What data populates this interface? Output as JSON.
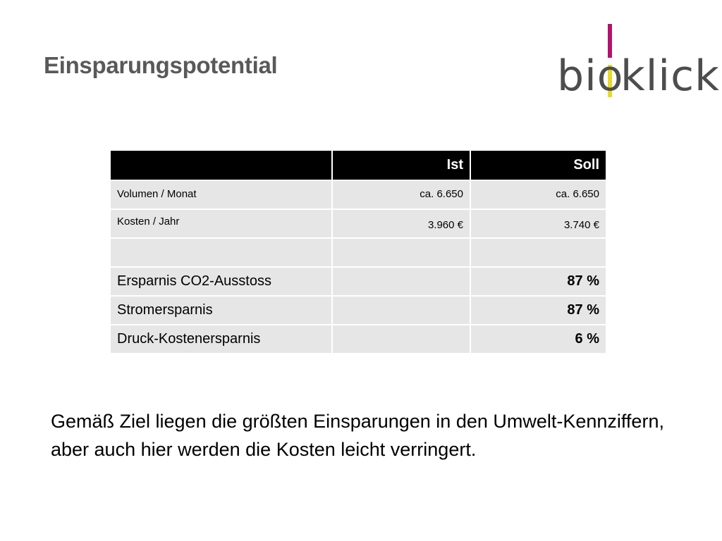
{
  "title": "Einsparungspotential",
  "logo": {
    "part_a": "bio",
    "part_b": "klick",
    "colors": {
      "magenta": "#b3126f",
      "yellow": "#e8d92a",
      "text": "#4d4d4d"
    }
  },
  "table": {
    "headers": [
      "",
      "Ist",
      "Soll"
    ],
    "rows": [
      {
        "label": "Volumen / Monat",
        "ist": "ca. 6.650",
        "soll": "ca. 6.650"
      },
      {
        "label": "Kosten / Jahr",
        "ist": "3.960 €",
        "soll": "3.740 €"
      },
      {
        "label": "",
        "ist": "",
        "soll": ""
      },
      {
        "label": "Ersparnis CO2-Ausstoss",
        "ist": "",
        "soll": "87 %"
      },
      {
        "label": "Stromersparnis",
        "ist": "",
        "soll": "87 %"
      },
      {
        "label": "Druck-Kostenersparnis",
        "ist": "",
        "soll": "6 %"
      }
    ]
  },
  "summary": "Gemäß Ziel liegen die größten Einsparungen in den Umwelt-Kennziffern, aber auch hier werden die Kosten leicht verringert."
}
